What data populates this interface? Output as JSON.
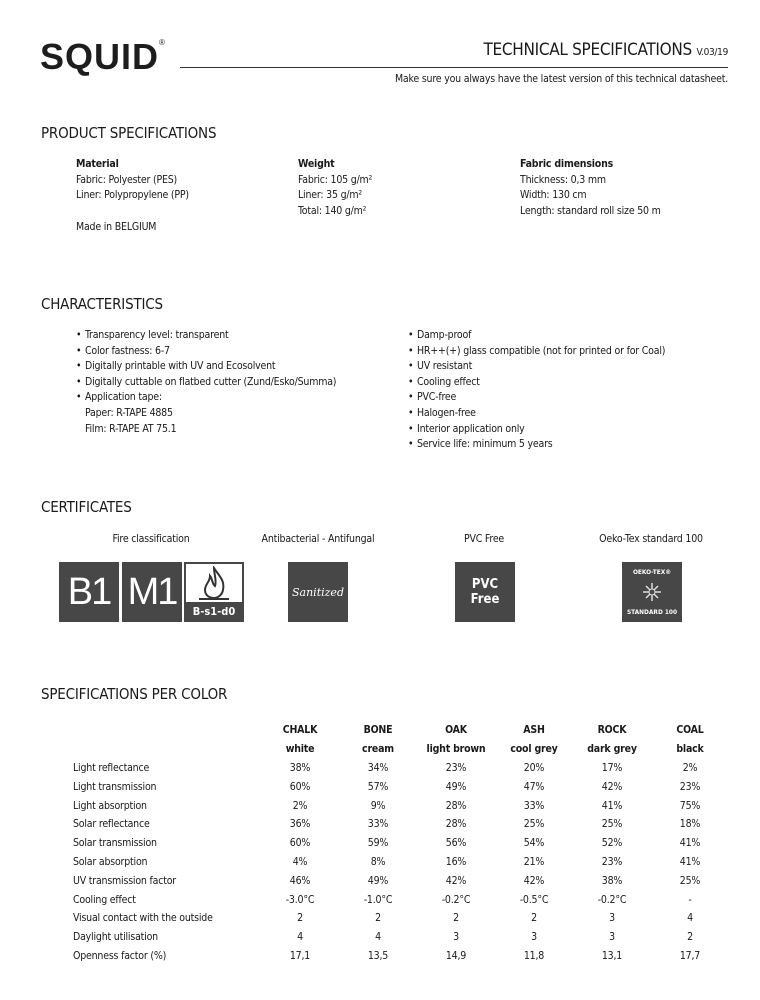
{
  "header": {
    "logo": "SQUID",
    "logo_mark": "®",
    "title": "TECHNICAL SPECIFICATIONS",
    "version": "V.03/19",
    "tagline": "Make sure you always have the latest version of this technical datasheet."
  },
  "product": {
    "heading": "PRODUCT SPECIFICATIONS",
    "material": {
      "title": "Material",
      "lines": [
        "Fabric: Polyester (PES)",
        "Liner: Polypropylene (PP)"
      ],
      "origin": "Made in BELGIUM"
    },
    "weight": {
      "title": "Weight",
      "lines": [
        "Fabric: 105 g/m²",
        "Liner: 35 g/m²",
        "Total: 140 g/m²"
      ]
    },
    "dimensions": {
      "title": "Fabric dimensions",
      "lines": [
        "Thickness: 0,3 mm",
        "Width: 130 cm",
        "Length: standard roll size 50 m"
      ]
    }
  },
  "characteristics": {
    "heading": "CHARACTERISTICS",
    "left": [
      "Transparency level: transparent",
      "Color fastness: 6-7",
      "Digitally printable with UV and Ecosolvent",
      "Digitally cuttable on flatbed cutter (Zund/Esko/Summa)",
      "Application tape:"
    ],
    "tape": [
      "Paper: R-TAPE 4885",
      "Film: R-TAPE AT 75.1"
    ],
    "right": [
      "Damp-proof",
      "HR++(+) glass compatible (not for printed or for Coal)",
      "UV resistant",
      "Cooling effect",
      "PVC-free",
      "Halogen-free",
      "Interior application only",
      "Service life: minimum 5 years"
    ]
  },
  "certificates": {
    "heading": "CERTIFICATES",
    "items": [
      {
        "label": "Fire classification",
        "badges": [
          "B1",
          "M1",
          "B-s1-d0"
        ]
      },
      {
        "label": "Antibacterial - Antifungal",
        "badge": "Sanitized"
      },
      {
        "label": "PVC Free",
        "badge_lines": [
          "PVC",
          "Free"
        ]
      },
      {
        "label": "Oeko-Tex standard 100",
        "badge_lines": [
          "OEKO-TEX®",
          "STANDARD 100"
        ]
      }
    ],
    "badge_color": "#474747"
  },
  "colors_table": {
    "heading": "SPECIFICATIONS PER COLOR",
    "columns": [
      {
        "name": "CHALK",
        "desc": "white"
      },
      {
        "name": "BONE",
        "desc": "cream"
      },
      {
        "name": "OAK",
        "desc": "light brown"
      },
      {
        "name": "ASH",
        "desc": "cool grey"
      },
      {
        "name": "ROCK",
        "desc": "dark grey"
      },
      {
        "name": "COAL",
        "desc": "black"
      }
    ],
    "rows": [
      {
        "label": "Light reflectance",
        "values": [
          "38%",
          "34%",
          "23%",
          "20%",
          "17%",
          "2%"
        ]
      },
      {
        "label": "Light transmission",
        "values": [
          "60%",
          "57%",
          "49%",
          "47%",
          "42%",
          "23%"
        ]
      },
      {
        "label": "Light absorption",
        "values": [
          "2%",
          "9%",
          "28%",
          "33%",
          "41%",
          "75%"
        ]
      },
      {
        "label": "Solar reflectance",
        "values": [
          "36%",
          "33%",
          "28%",
          "25%",
          "25%",
          "18%"
        ]
      },
      {
        "label": "Solar transmission",
        "values": [
          "60%",
          "59%",
          "56%",
          "54%",
          "52%",
          "41%"
        ]
      },
      {
        "label": "Solar absorption",
        "values": [
          "4%",
          "8%",
          "16%",
          "21%",
          "23%",
          "41%"
        ]
      },
      {
        "label": "UV transmission factor",
        "values": [
          "46%",
          "49%",
          "42%",
          "42%",
          "38%",
          "25%"
        ]
      },
      {
        "label": "Cooling effect",
        "values": [
          "-3.0°C",
          "-1.0°C",
          "-0.2°C",
          "-0.5°C",
          "-0.2°C",
          "-"
        ]
      },
      {
        "label": "Visual contact with the outside",
        "values": [
          "2",
          "2",
          "2",
          "2",
          "3",
          "4"
        ]
      },
      {
        "label": "Daylight utilisation",
        "values": [
          "4",
          "4",
          "3",
          "3",
          "3",
          "2"
        ]
      },
      {
        "label": "Openness factor (%)",
        "values": [
          "17,1",
          "13,5",
          "14,9",
          "11,8",
          "13,1",
          "17,7"
        ]
      }
    ]
  }
}
